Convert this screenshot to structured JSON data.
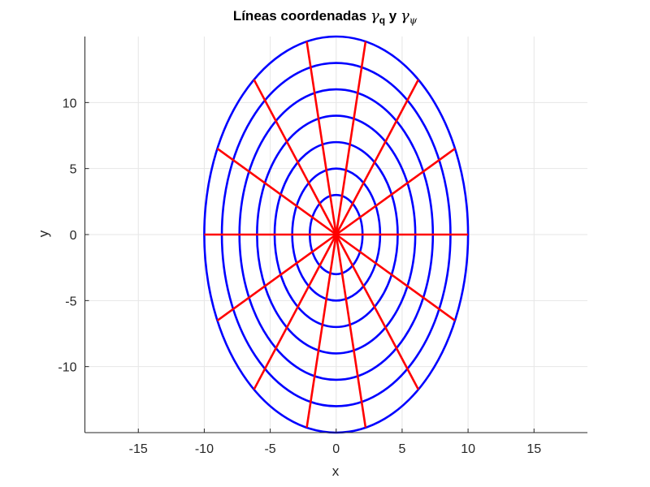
{
  "chart_data": {
    "type": "line",
    "title": "Líneas coordenadas γq y γψ",
    "title_parts": {
      "prefix": "Líneas coordenadas ",
      "sym1": "γ",
      "sub1": "q",
      "mid": " y ",
      "sym2": "γ",
      "sub2": "ψ"
    },
    "xlabel": "x",
    "ylabel": "y",
    "xlim": [
      -19.05,
      19.05
    ],
    "ylim": [
      -15,
      15
    ],
    "xticks": [
      -15,
      -10,
      -5,
      0,
      5,
      10,
      15
    ],
    "yticks": [
      -10,
      -5,
      0,
      5,
      10
    ],
    "xtick_labels": [
      "-15",
      "-10",
      "-5",
      "0",
      "5",
      "10",
      "15"
    ],
    "ytick_labels": [
      "-10",
      "-5",
      "0",
      "5",
      "10"
    ],
    "grid": true,
    "axis_equal": true,
    "series": [
      {
        "name": "gamma_q (ellipses)",
        "color": "#0000FF",
        "kind": "ellipse",
        "center": [
          0,
          0
        ],
        "semi_axes": [
          [
            2,
            3
          ],
          [
            3.333,
            5
          ],
          [
            4.667,
            7
          ],
          [
            6,
            9
          ],
          [
            7.333,
            11
          ],
          [
            8.667,
            13
          ],
          [
            10,
            15
          ]
        ]
      },
      {
        "name": "gamma_psi (radial lines)",
        "color": "#FF0000",
        "kind": "rays",
        "center": [
          0,
          0
        ],
        "outer_semi_axes": [
          10,
          15
        ],
        "count": 14,
        "endpoints": [
          [
            10.0,
            0.0
          ],
          [
            9.01,
            6.51
          ],
          [
            6.23,
            11.73
          ],
          [
            2.23,
            14.62
          ],
          [
            -2.23,
            14.62
          ],
          [
            -6.23,
            11.73
          ],
          [
            -9.01,
            6.51
          ],
          [
            -10.0,
            0.0
          ],
          [
            -9.01,
            -6.51
          ],
          [
            -6.23,
            -11.73
          ],
          [
            -2.23,
            -14.62
          ],
          [
            2.23,
            -14.62
          ],
          [
            6.23,
            -11.73
          ],
          [
            9.01,
            -6.51
          ]
        ]
      }
    ]
  },
  "style": {
    "ellipse_color": "#0000FF",
    "ray_color": "#FF0000",
    "grid_color": "#E6E6E6",
    "axis_color": "#262626"
  }
}
